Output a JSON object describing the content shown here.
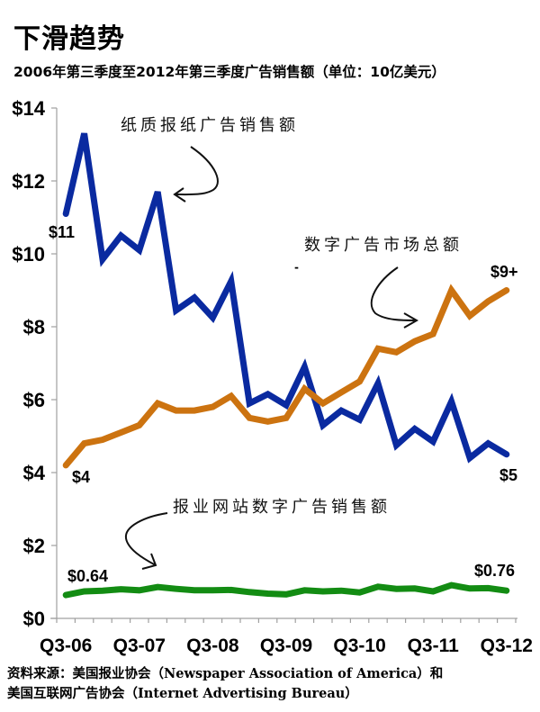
{
  "header": {
    "title": "下滑趋势",
    "subtitle": "2006年第三季度至2012年第三季度广告销售额（单位：10亿美元）"
  },
  "source": {
    "line1": "资料来源：美国报业协会（Newspaper Association of America）和",
    "line2": "美国互联网广告协会（Internet Advertising Bureau）"
  },
  "annotations": {
    "print": "纸质报纸广告销售额",
    "digital_total": "数字广告市场总额",
    "newspaper_web": "报业网站数字广告销售额"
  },
  "data_labels": {
    "print_start": "$11",
    "print_end": "$5",
    "digital_start": "$4",
    "digital_end": "$9+",
    "web_start": "$0.64",
    "web_end": "$0.76"
  },
  "axis": {
    "y_ticks": [
      "$0",
      "$2",
      "$4",
      "$6",
      "$8",
      "$10",
      "$12",
      "$14"
    ],
    "x_ticks": [
      "Q3-06",
      "Q3-07",
      "Q3-08",
      "Q3-09",
      "Q3-10",
      "Q3-11",
      "Q3-12"
    ]
  },
  "colors": {
    "print": "#0a2aa0",
    "digital_total": "#cc7310",
    "newspaper_web": "#138c13",
    "axis": "#a0a0a0"
  },
  "chart_data": {
    "type": "line",
    "title": "下滑趋势",
    "subtitle": "2006年第三季度至2012年第三季度广告销售额（单位：10亿美元）",
    "xlabel": "",
    "ylabel": "",
    "ylim": [
      0,
      14
    ],
    "grid": false,
    "legend": "inline annotations",
    "x": [
      "Q3-06",
      "Q4-06",
      "Q1-07",
      "Q2-07",
      "Q3-07",
      "Q4-07",
      "Q1-08",
      "Q2-08",
      "Q3-08",
      "Q4-08",
      "Q1-09",
      "Q2-09",
      "Q3-09",
      "Q4-09",
      "Q1-10",
      "Q2-10",
      "Q3-10",
      "Q4-10",
      "Q1-11",
      "Q2-11",
      "Q3-11",
      "Q4-11",
      "Q1-12",
      "Q2-12",
      "Q3-12"
    ],
    "x_tick_labels": [
      "Q3-06",
      "Q3-07",
      "Q3-08",
      "Q3-09",
      "Q3-10",
      "Q3-11",
      "Q3-12"
    ],
    "series": [
      {
        "name": "纸质报纸广告销售额",
        "color": "#0a2aa0",
        "values": [
          11.1,
          13.3,
          9.85,
          10.5,
          10.1,
          11.7,
          8.45,
          8.8,
          8.25,
          9.25,
          5.9,
          6.15,
          5.85,
          6.9,
          5.3,
          5.7,
          5.45,
          6.45,
          4.75,
          5.2,
          4.85,
          5.95,
          4.4,
          4.8,
          4.5
        ]
      },
      {
        "name": "数字广告市场总额",
        "color": "#cc7310",
        "values": [
          4.2,
          4.8,
          4.9,
          5.1,
          5.3,
          5.9,
          5.7,
          5.7,
          5.8,
          6.1,
          5.5,
          5.4,
          5.5,
          6.3,
          5.9,
          6.2,
          6.5,
          7.4,
          7.3,
          7.6,
          7.8,
          9.0,
          8.3,
          8.7,
          9.0
        ]
      },
      {
        "name": "报业网站数字广告销售额",
        "color": "#138c13",
        "values": [
          0.64,
          0.74,
          0.76,
          0.8,
          0.77,
          0.86,
          0.81,
          0.77,
          0.77,
          0.78,
          0.72,
          0.68,
          0.66,
          0.77,
          0.74,
          0.76,
          0.71,
          0.87,
          0.81,
          0.82,
          0.74,
          0.91,
          0.82,
          0.83,
          0.76
        ]
      }
    ]
  }
}
